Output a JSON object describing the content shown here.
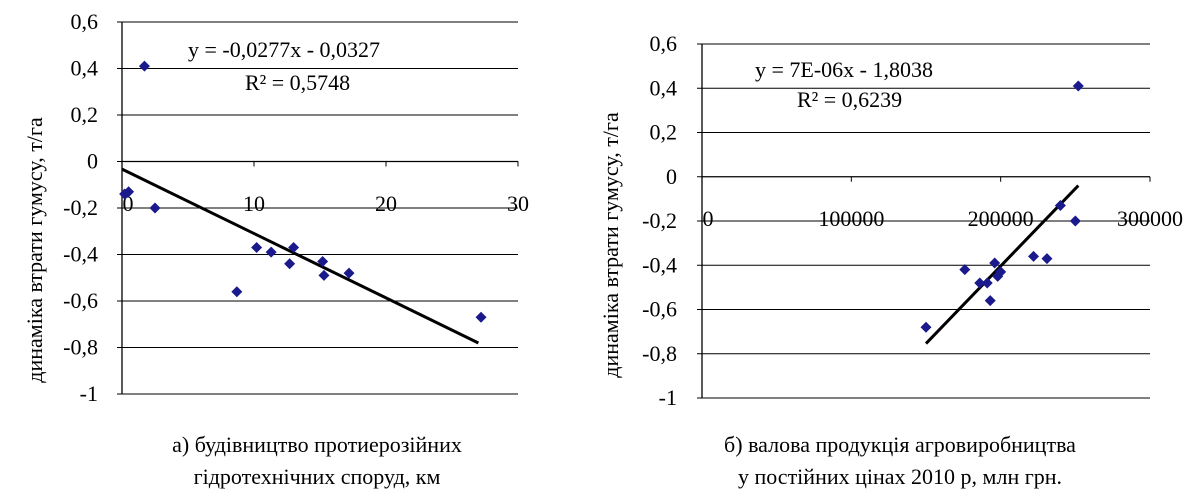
{
  "chart_data": [
    {
      "type": "scatter",
      "ylabel": "динаміка втрати гумусу, т/га",
      "caption": [
        "а) будівництво протиерозійних",
        "гідротехнічних споруд, км"
      ],
      "equation": "y = -0,0277x - 0,0327",
      "r2": "R² = 0,5748",
      "xlim": [
        0,
        30
      ],
      "ylim": [
        -1,
        0.6
      ],
      "xticks": [
        0,
        10,
        20,
        30
      ],
      "xtick_labels": [
        "0",
        "10",
        "20",
        "30"
      ],
      "yticks": [
        0.6,
        0.4,
        0.2,
        0,
        -0.2,
        -0.4,
        -0.6,
        -0.8,
        -1
      ],
      "ytick_labels": [
        "0,6",
        "0,4",
        "0,2",
        "0",
        "-0,2",
        "-0,4",
        "-0,6",
        "-0,8",
        "-1"
      ],
      "gridlines": "horizontal",
      "points": [
        {
          "x": 0.2,
          "y": -0.14
        },
        {
          "x": 0.5,
          "y": -0.13
        },
        {
          "x": 1.7,
          "y": 0.41
        },
        {
          "x": 2.5,
          "y": -0.2
        },
        {
          "x": 8.7,
          "y": -0.56
        },
        {
          "x": 10.2,
          "y": -0.37
        },
        {
          "x": 11.3,
          "y": -0.39
        },
        {
          "x": 12.7,
          "y": -0.44
        },
        {
          "x": 13.0,
          "y": -0.37
        },
        {
          "x": 15.2,
          "y": -0.43
        },
        {
          "x": 15.3,
          "y": -0.49
        },
        {
          "x": 17.2,
          "y": -0.48
        },
        {
          "x": 27.2,
          "y": -0.67
        }
      ],
      "trend": {
        "slope": -0.0277,
        "intercept": -0.0327,
        "x_range": [
          0,
          27
        ]
      },
      "marker_color": "#1a1a8c"
    },
    {
      "type": "scatter",
      "ylabel": "динаміка втрати гумусу,  т/га",
      "caption": [
        "б) валова продукція агровиробництва",
        "у постійних цінах 2010 р, млн грн."
      ],
      "equation": "y = 7E-06x - 1,8038",
      "r2": "R² = 0,6239",
      "xlim": [
        0,
        300000
      ],
      "ylim": [
        -1,
        0.6
      ],
      "xticks": [
        0,
        100000,
        200000,
        300000
      ],
      "xtick_labels": [
        "0",
        "100000",
        "200000",
        "300000"
      ],
      "yticks": [
        0.6,
        0.4,
        0.2,
        0,
        -0.2,
        -0.4,
        -0.6,
        -0.8,
        -1
      ],
      "ytick_labels": [
        "0,6",
        "0,4",
        "0,2",
        "0",
        "-0,2",
        "-0,4",
        "-0,6",
        "-0,8",
        "-1"
      ],
      "gridlines": "horizontal",
      "points": [
        {
          "x": 150000,
          "y": -0.68
        },
        {
          "x": 176000,
          "y": -0.42
        },
        {
          "x": 186000,
          "y": -0.48
        },
        {
          "x": 191000,
          "y": -0.48
        },
        {
          "x": 193000,
          "y": -0.56
        },
        {
          "x": 196000,
          "y": -0.39
        },
        {
          "x": 198000,
          "y": -0.45
        },
        {
          "x": 200000,
          "y": -0.43
        },
        {
          "x": 222000,
          "y": -0.36
        },
        {
          "x": 231000,
          "y": -0.37
        },
        {
          "x": 240000,
          "y": -0.13
        },
        {
          "x": 250000,
          "y": -0.2
        },
        {
          "x": 252000,
          "y": 0.41
        }
      ],
      "trend": {
        "slope": 7e-06,
        "intercept": -1.8038,
        "x_range": [
          150000,
          252000
        ]
      },
      "marker_color": "#1a1a8c"
    }
  ]
}
